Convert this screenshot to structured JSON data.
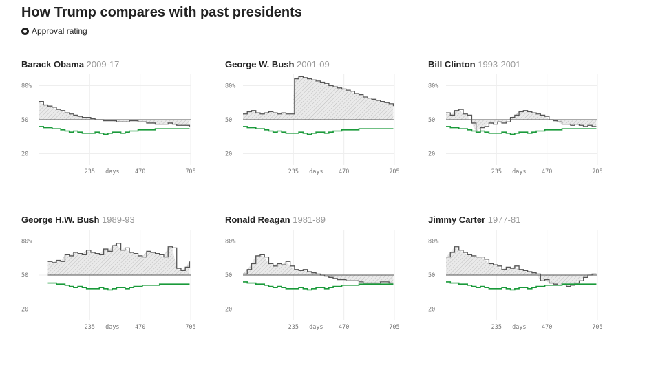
{
  "title": "How Trump compares with past presidents",
  "legend": {
    "label": "Approval rating",
    "icon": "ring-dot-icon"
  },
  "colors": {
    "trump": "#1a9a3a",
    "president": "#555555",
    "fill": "#d8d8d8",
    "grid": "#eeeeee",
    "baseline": "#555555"
  },
  "x_tick_labels": [
    "235",
    "days",
    "470",
    "705"
  ],
  "y_tick_labels": [
    "80%",
    "50",
    "20"
  ],
  "chart_data": [
    {
      "type": "line",
      "name": "Barack Obama",
      "years": "2009-17",
      "xlim": [
        0,
        705
      ],
      "ylim": [
        10,
        90
      ],
      "baseline": 50,
      "x_ticks": [
        235,
        470,
        705
      ],
      "y_ticks": [
        80,
        50,
        20
      ],
      "x": [
        0,
        20,
        40,
        60,
        80,
        100,
        120,
        140,
        160,
        180,
        200,
        220,
        240,
        260,
        280,
        300,
        320,
        340,
        360,
        380,
        400,
        420,
        440,
        460,
        480,
        500,
        520,
        540,
        560,
        580,
        600,
        620,
        640,
        660,
        680,
        700
      ],
      "series": [
        {
          "name": "",
          "values": [
            66,
            63,
            62,
            61,
            59,
            58,
            56,
            55,
            54,
            53,
            52,
            52,
            51,
            50,
            50,
            49,
            49,
            49,
            48,
            48,
            48,
            49,
            49,
            48,
            48,
            47,
            47,
            46,
            46,
            46,
            47,
            46,
            45,
            45,
            45,
            44
          ]
        },
        {
          "name": "",
          "values": [
            44,
            43,
            43,
            42,
            42,
            41,
            40,
            39,
            40,
            39,
            38,
            38,
            38,
            39,
            38,
            37,
            38,
            39,
            39,
            38,
            39,
            40,
            40,
            41,
            41,
            41,
            41,
            42,
            42,
            42,
            42,
            42,
            42,
            42,
            42,
            42
          ]
        }
      ]
    },
    {
      "type": "line",
      "name": "George W. Bush",
      "years": "2001-09",
      "xlim": [
        0,
        705
      ],
      "ylim": [
        10,
        90
      ],
      "baseline": 50,
      "x_ticks": [
        235,
        470,
        705
      ],
      "y_ticks": [
        80,
        50,
        20
      ],
      "x": [
        0,
        20,
        40,
        60,
        80,
        100,
        120,
        140,
        160,
        180,
        200,
        220,
        230,
        240,
        260,
        280,
        300,
        320,
        340,
        360,
        380,
        400,
        420,
        440,
        460,
        480,
        500,
        520,
        540,
        560,
        580,
        600,
        620,
        640,
        660,
        680,
        700
      ],
      "series": [
        {
          "name": "",
          "values": [
            55,
            57,
            58,
            56,
            55,
            56,
            57,
            56,
            55,
            56,
            55,
            55,
            55,
            86,
            88,
            87,
            86,
            85,
            84,
            83,
            82,
            80,
            79,
            78,
            77,
            76,
            75,
            73,
            72,
            70,
            69,
            68,
            67,
            66,
            65,
            64,
            62
          ]
        },
        {
          "name": "",
          "values": [
            44,
            43,
            43,
            42,
            42,
            41,
            40,
            39,
            40,
            39,
            38,
            38,
            38,
            38,
            39,
            38,
            37,
            38,
            39,
            39,
            38,
            39,
            40,
            40,
            41,
            41,
            41,
            41,
            42,
            42,
            42,
            42,
            42,
            42,
            42,
            42,
            42
          ]
        }
      ]
    },
    {
      "type": "line",
      "name": "Bill Clinton",
      "years": "1993-2001",
      "xlim": [
        0,
        705
      ],
      "ylim": [
        10,
        90
      ],
      "baseline": 50,
      "x_ticks": [
        235,
        470,
        705
      ],
      "y_ticks": [
        80,
        50,
        20
      ],
      "x": [
        0,
        20,
        40,
        60,
        80,
        100,
        120,
        140,
        160,
        180,
        200,
        220,
        240,
        260,
        280,
        300,
        320,
        340,
        360,
        380,
        400,
        420,
        440,
        460,
        480,
        500,
        520,
        540,
        560,
        580,
        600,
        620,
        640,
        660,
        680,
        700
      ],
      "series": [
        {
          "name": "",
          "values": [
            56,
            54,
            58,
            59,
            55,
            54,
            47,
            39,
            43,
            44,
            47,
            46,
            48,
            47,
            48,
            52,
            54,
            57,
            58,
            57,
            56,
            55,
            54,
            53,
            50,
            49,
            48,
            46,
            46,
            45,
            46,
            45,
            44,
            45,
            44,
            44
          ]
        },
        {
          "name": "",
          "values": [
            44,
            43,
            43,
            42,
            42,
            41,
            40,
            39,
            40,
            39,
            38,
            38,
            38,
            39,
            38,
            37,
            38,
            39,
            39,
            38,
            39,
            40,
            40,
            41,
            41,
            41,
            41,
            42,
            42,
            42,
            42,
            42,
            42,
            42,
            42,
            42
          ]
        }
      ]
    },
    {
      "type": "line",
      "name": "George H.W. Bush",
      "years": "1989-93",
      "xlim": [
        0,
        705
      ],
      "ylim": [
        10,
        90
      ],
      "baseline": 50,
      "x_ticks": [
        235,
        470,
        705
      ],
      "y_ticks": [
        80,
        50,
        20
      ],
      "x": [
        40,
        60,
        80,
        100,
        120,
        140,
        160,
        180,
        200,
        220,
        240,
        260,
        280,
        300,
        320,
        340,
        360,
        380,
        400,
        420,
        440,
        460,
        480,
        500,
        520,
        540,
        560,
        580,
        600,
        620,
        640,
        660,
        680,
        700
      ],
      "series": [
        {
          "name": "",
          "values": [
            62,
            61,
            63,
            62,
            68,
            67,
            70,
            69,
            68,
            72,
            70,
            69,
            68,
            73,
            71,
            76,
            78,
            72,
            74,
            70,
            69,
            67,
            66,
            71,
            70,
            69,
            68,
            66,
            75,
            74,
            56,
            54,
            57,
            62
          ]
        },
        {
          "name": "",
          "values": [
            43,
            43,
            42,
            42,
            41,
            40,
            39,
            40,
            39,
            38,
            38,
            38,
            39,
            38,
            37,
            38,
            39,
            39,
            38,
            39,
            40,
            40,
            41,
            41,
            41,
            41,
            42,
            42,
            42,
            42,
            42,
            42,
            42,
            42
          ]
        }
      ]
    },
    {
      "type": "line",
      "name": "Ronald Reagan",
      "years": "1981-89",
      "xlim": [
        0,
        705
      ],
      "ylim": [
        10,
        90
      ],
      "baseline": 50,
      "x_ticks": [
        235,
        470,
        705
      ],
      "y_ticks": [
        80,
        50,
        20
      ],
      "x": [
        0,
        20,
        40,
        60,
        80,
        100,
        120,
        140,
        160,
        180,
        200,
        220,
        240,
        260,
        280,
        300,
        320,
        340,
        360,
        380,
        400,
        420,
        440,
        460,
        480,
        500,
        520,
        540,
        560,
        580,
        600,
        620,
        640,
        660,
        680,
        700
      ],
      "series": [
        {
          "name": "",
          "values": [
            51,
            55,
            60,
            67,
            68,
            66,
            60,
            58,
            60,
            59,
            62,
            58,
            55,
            54,
            55,
            53,
            52,
            51,
            50,
            49,
            48,
            47,
            46,
            46,
            45,
            45,
            45,
            44,
            43,
            43,
            43,
            43,
            44,
            44,
            43,
            43
          ]
        },
        {
          "name": "",
          "values": [
            44,
            43,
            43,
            42,
            42,
            41,
            40,
            39,
            40,
            39,
            38,
            38,
            38,
            39,
            38,
            37,
            38,
            39,
            39,
            38,
            39,
            40,
            40,
            41,
            41,
            41,
            41,
            42,
            42,
            42,
            42,
            42,
            42,
            42,
            42,
            42
          ]
        }
      ]
    },
    {
      "type": "line",
      "name": "Jimmy Carter",
      "years": "1977-81",
      "xlim": [
        0,
        705
      ],
      "ylim": [
        10,
        90
      ],
      "baseline": 50,
      "x_ticks": [
        235,
        470,
        705
      ],
      "y_ticks": [
        80,
        50,
        20
      ],
      "x": [
        0,
        20,
        40,
        60,
        80,
        100,
        120,
        140,
        160,
        180,
        200,
        220,
        240,
        260,
        280,
        300,
        320,
        340,
        360,
        380,
        400,
        420,
        440,
        460,
        480,
        500,
        520,
        540,
        560,
        580,
        600,
        620,
        640,
        660,
        680,
        700
      ],
      "series": [
        {
          "name": "",
          "values": [
            66,
            70,
            75,
            72,
            70,
            68,
            67,
            66,
            66,
            64,
            60,
            59,
            58,
            55,
            57,
            56,
            58,
            55,
            54,
            53,
            52,
            51,
            45,
            46,
            43,
            42,
            41,
            42,
            40,
            41,
            43,
            45,
            48,
            50,
            51,
            51
          ]
        },
        {
          "name": "",
          "values": [
            44,
            43,
            43,
            42,
            42,
            41,
            40,
            39,
            40,
            39,
            38,
            38,
            38,
            39,
            38,
            37,
            38,
            39,
            39,
            38,
            39,
            40,
            40,
            41,
            41,
            41,
            41,
            42,
            42,
            42,
            42,
            42,
            42,
            42,
            42,
            42
          ]
        }
      ]
    }
  ]
}
